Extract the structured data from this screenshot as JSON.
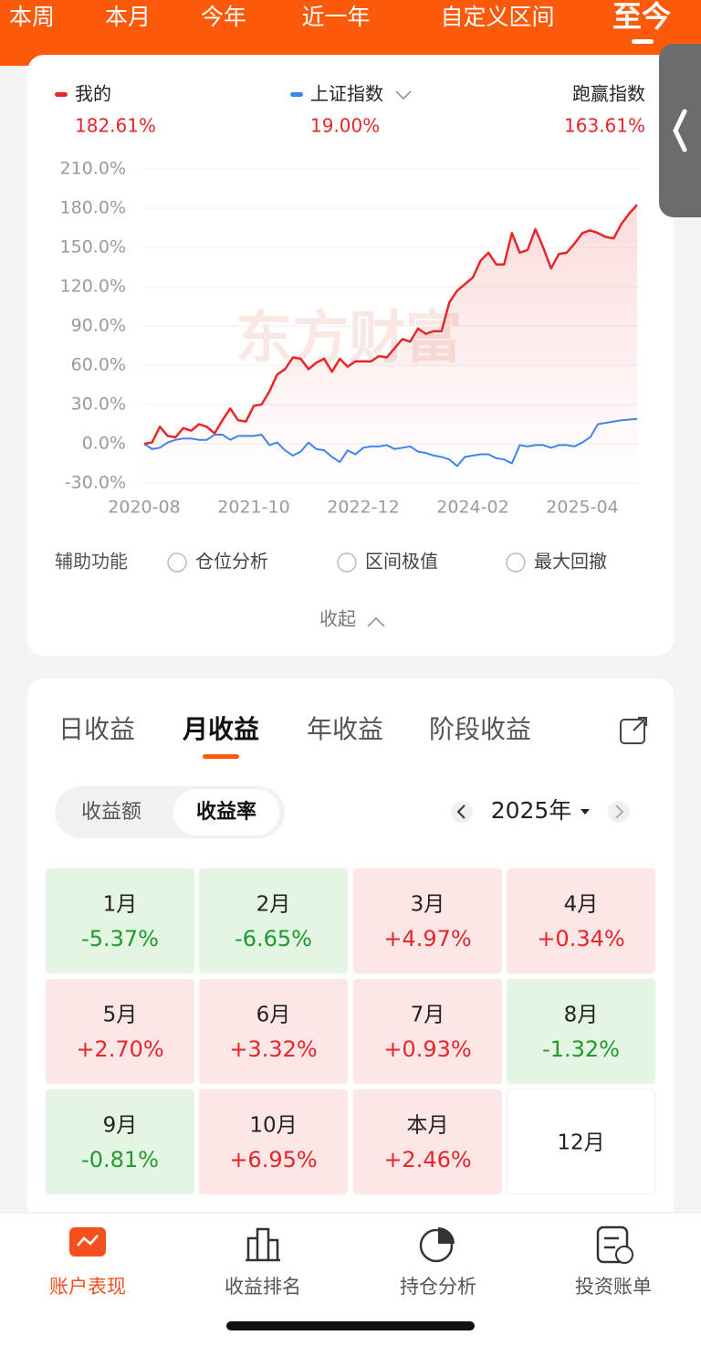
{
  "top_tabs": [
    "本周",
    "本月",
    "今年",
    "近一年",
    "自定义区间",
    "至今"
  ],
  "summary": {
    "mine": "182.61%",
    "index": "19.00%",
    "excess_label": "跑赢指数",
    "excess": "163.61%"
  },
  "chart_data": {
    "type": "line",
    "watermark": "东方财富",
    "x": [
      "2020-08",
      "2020-09",
      "2020-10",
      "2020-11",
      "2020-12",
      "2021-01",
      "2021-02",
      "2021-03",
      "2021-04",
      "2021-05",
      "2021-06",
      "2021-07",
      "2021-08",
      "2021-09",
      "2021-10",
      "2021-11",
      "2021-12",
      "2022-01",
      "2022-02",
      "2022-03",
      "2022-04",
      "2022-05",
      "2022-06",
      "2022-07",
      "2022-08",
      "2022-09",
      "2022-10",
      "2022-11",
      "2022-12",
      "2023-01",
      "2023-02",
      "2023-03",
      "2023-04",
      "2023-05",
      "2023-06",
      "2023-07",
      "2023-08",
      "2023-09",
      "2023-10",
      "2023-11",
      "2023-12",
      "2024-01",
      "2024-02",
      "2024-03",
      "2024-04",
      "2024-05",
      "2024-06",
      "2024-07",
      "2024-08",
      "2024-09",
      "2024-10",
      "2024-11",
      "2024-12",
      "2025-01",
      "2025-02",
      "2025-03",
      "2025-04",
      "2025-05",
      "2025-06",
      "2025-07",
      "2025-08",
      "2025-09",
      "2025-10",
      "2025-11"
    ],
    "xticks": [
      "2020-08",
      "2021-10",
      "2022-12",
      "2024-02",
      "2025-04"
    ],
    "ylim": [
      -30,
      210
    ],
    "yticks": [
      {
        "value": -30,
        "label": "-30.0%"
      },
      {
        "value": 0,
        "label": "0.0%"
      },
      {
        "value": 30,
        "label": "30.0%"
      },
      {
        "value": 60,
        "label": "60.0%"
      },
      {
        "value": 90,
        "label": "90.0%"
      },
      {
        "value": 120,
        "label": "120.0%"
      },
      {
        "value": 150,
        "label": "150.0%"
      },
      {
        "value": 180,
        "label": "180.0%"
      },
      {
        "value": 210,
        "label": "210.0%"
      }
    ],
    "grid": true,
    "series": [
      {
        "name": "我的",
        "color": "#e8262a",
        "values": [
          0,
          1,
          13,
          6,
          5,
          12,
          10,
          15,
          13,
          8,
          18,
          27,
          18,
          17,
          29,
          30,
          40,
          53,
          57,
          66,
          65,
          57,
          62,
          65,
          55,
          65,
          59,
          63,
          63,
          63,
          67,
          66,
          73,
          80,
          78,
          88,
          84,
          86,
          86,
          108,
          117,
          122,
          127,
          140,
          146,
          137,
          137,
          161,
          146,
          148,
          164,
          150,
          134,
          145,
          146,
          153,
          161,
          163,
          161,
          158,
          157,
          168,
          176,
          182.61
        ]
      },
      {
        "name": "上证指数",
        "color": "#3d85f0",
        "values": [
          0,
          -4,
          -3,
          1,
          3,
          4,
          4,
          3,
          3,
          7,
          7,
          3,
          6,
          6,
          6,
          7,
          -1,
          1,
          -5,
          -9,
          -6,
          1,
          -4,
          -5,
          -10,
          -14,
          -5,
          -8,
          -3,
          -2,
          -2,
          -1,
          -4,
          -3,
          -2,
          -6,
          -7,
          -9,
          -10,
          -12,
          -17,
          -10,
          -9,
          -8,
          -8,
          -11,
          -12,
          -15,
          -1,
          -2,
          -1,
          -1,
          -3,
          -1,
          -1,
          -2,
          1,
          5,
          15,
          16,
          17,
          18,
          18.5,
          19
        ]
      }
    ]
  },
  "aux": {
    "label": "辅助功能",
    "options": [
      "仓位分析",
      "区间极值",
      "最大回撤"
    ]
  },
  "collapse": "收起",
  "returns": {
    "tabs": [
      "日收益",
      "月收益",
      "年收益",
      "阶段收益"
    ],
    "active_tab": 1,
    "toggle": [
      "收益额",
      "收益率"
    ],
    "active_toggle": 1,
    "year": "2025年",
    "cells": [
      {
        "month": "1月",
        "value": "-5.37%"
      },
      {
        "month": "2月",
        "value": "-6.65%"
      },
      {
        "month": "3月",
        "value": "+4.97%"
      },
      {
        "month": "4月",
        "value": "+0.34%"
      },
      {
        "month": "5月",
        "value": "+2.70%"
      },
      {
        "month": "6月",
        "value": "+3.32%"
      },
      {
        "month": "7月",
        "value": "+0.93%"
      },
      {
        "month": "8月",
        "value": "-1.32%"
      },
      {
        "month": "9月",
        "value": "-0.81%"
      },
      {
        "month": "10月",
        "value": "+6.95%"
      },
      {
        "month": "本月",
        "value": "+2.46%"
      },
      {
        "month": "12月"
      }
    ]
  },
  "nav": {
    "items": [
      "账户表现",
      "收益排名",
      "持仓分析",
      "投资账单"
    ],
    "active": 0
  }
}
